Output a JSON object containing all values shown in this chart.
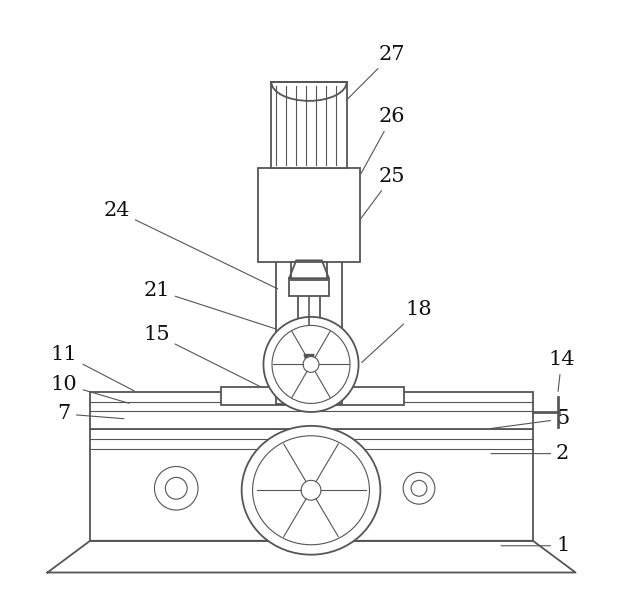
{
  "bg_color": "#ffffff",
  "line_color": "#555555",
  "line_width": 1.3,
  "thin_lw": 0.8,
  "fig_width": 6.23,
  "fig_height": 6.06,
  "dpi": 100
}
